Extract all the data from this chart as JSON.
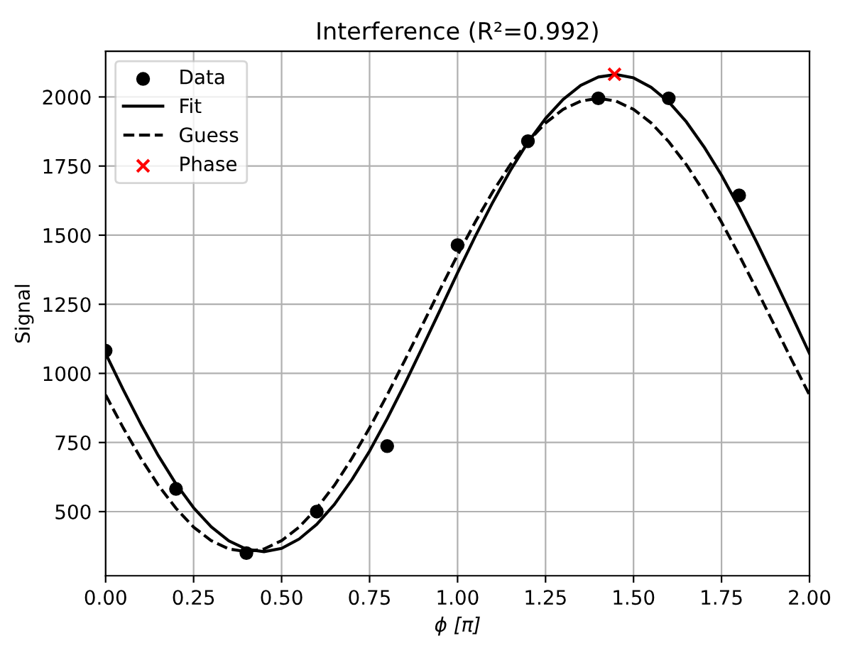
{
  "chart_data": {
    "type": "scatter",
    "title": "Interference (R²=0.992)",
    "xlabel": "ϕ [π]",
    "ylabel": "Signal",
    "xlim": [
      0,
      2
    ],
    "ylim": [
      268,
      2165
    ],
    "xticks": [
      {
        "value": 0,
        "label": "0.00"
      },
      {
        "value": 0.25,
        "label": "0.25"
      },
      {
        "value": 0.5,
        "label": "0.50"
      },
      {
        "value": 0.75,
        "label": "0.75"
      },
      {
        "value": 1,
        "label": "1.00"
      },
      {
        "value": 1.25,
        "label": "1.25"
      },
      {
        "value": 1.5,
        "label": "1.50"
      },
      {
        "value": 1.75,
        "label": "1.75"
      },
      {
        "value": 2,
        "label": "2.00"
      }
    ],
    "yticks": [
      500,
      750,
      1000,
      1250,
      1500,
      1750,
      2000
    ],
    "grid": true,
    "legend": "top left",
    "series": [
      {
        "name": "Data",
        "color": "#000000",
        "marker": "circle",
        "x": [
          0,
          0.2,
          0.4,
          0.6,
          0.8,
          1.0,
          1.2,
          1.4,
          1.6,
          1.8
        ],
        "values": [
          1082,
          582,
          350,
          500,
          737,
          1464,
          1840,
          1995,
          1995,
          1644
        ]
      },
      {
        "name": "Fit",
        "type": "line",
        "color": "#000000",
        "line_style": "solid",
        "x": [
          0,
          0.05,
          0.1,
          0.15,
          0.2,
          0.25,
          0.3,
          0.35,
          0.4,
          0.45,
          0.5,
          0.55,
          0.6,
          0.65,
          0.7,
          0.75,
          0.8,
          0.85,
          0.9,
          0.95,
          1.0,
          1.05,
          1.1,
          1.15,
          1.2,
          1.25,
          1.3,
          1.35,
          1.4,
          1.45,
          1.5,
          1.55,
          1.6,
          1.65,
          1.7,
          1.75,
          1.8,
          1.85,
          1.9,
          1.95,
          2.0
        ],
        "values": [
          1072,
          941,
          817,
          702,
          600,
          514,
          445,
          394,
          364,
          355,
          367,
          401,
          454,
          526,
          616,
          719,
          836,
          962,
          1094,
          1228,
          1364,
          1495,
          1619,
          1734,
          1836,
          1922,
          1991,
          2042,
          2072,
          2081,
          2069,
          2035,
          1982,
          1910,
          1820,
          1717,
          1600,
          1474,
          1342,
          1208,
          1072
        ]
      },
      {
        "name": "Guess",
        "type": "line",
        "color": "#000000",
        "line_style": "dashed",
        "x": [
          0,
          0.05,
          0.1,
          0.15,
          0.2,
          0.25,
          0.3,
          0.35,
          0.4,
          0.45,
          0.5,
          0.55,
          0.6,
          0.65,
          0.7,
          0.75,
          0.8,
          0.85,
          0.9,
          0.95,
          1.0,
          1.05,
          1.1,
          1.15,
          1.2,
          1.25,
          1.3,
          1.35,
          1.4,
          1.45,
          1.5,
          1.55,
          1.6,
          1.65,
          1.7,
          1.75,
          1.8,
          1.85,
          1.9,
          1.95,
          2.0
        ],
        "values": [
          922,
          803,
          693,
          595,
          512,
          444,
          395,
          365,
          355,
          365,
          395,
          444,
          512,
          595,
          693,
          803,
          922,
          1047,
          1175,
          1303,
          1428,
          1547,
          1657,
          1755,
          1838,
          1906,
          1955,
          1985,
          1995,
          1985,
          1955,
          1906,
          1838,
          1755,
          1657,
          1547,
          1428,
          1303,
          1175,
          1047,
          922
        ]
      },
      {
        "name": "Phase",
        "color": "#ff0000",
        "marker": "cross",
        "x": [
          1.446
        ],
        "values": [
          2082
        ]
      }
    ]
  }
}
